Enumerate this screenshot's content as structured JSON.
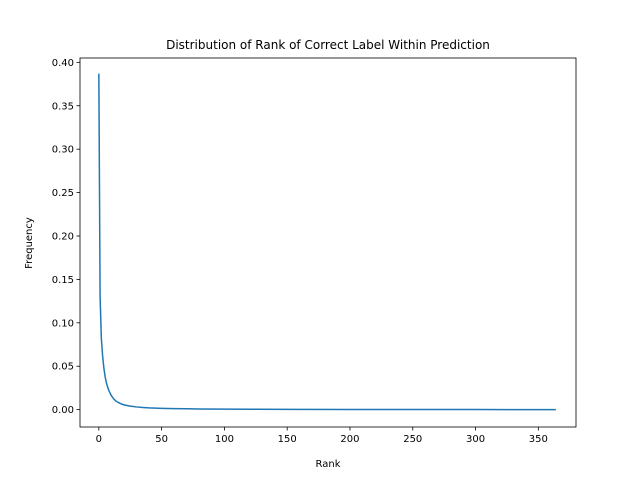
{
  "chart_data": {
    "type": "line",
    "title": "Distribution of Rank of Correct Label Within Prediction",
    "xlabel": "Rank",
    "ylabel": "Frequency",
    "xlim": [
      -15,
      380
    ],
    "ylim": [
      -0.02,
      0.405
    ],
    "xticks": [
      0,
      50,
      100,
      150,
      200,
      250,
      300,
      350
    ],
    "xtick_labels": [
      "0",
      "50",
      "100",
      "150",
      "200",
      "250",
      "300",
      "350"
    ],
    "yticks": [
      0.0,
      0.05,
      0.1,
      0.15,
      0.2,
      0.25,
      0.3,
      0.35,
      0.4
    ],
    "ytick_labels": [
      "0.00",
      "0.05",
      "0.10",
      "0.15",
      "0.20",
      "0.25",
      "0.30",
      "0.35",
      "0.40"
    ],
    "grid": false,
    "line_color": "#1f77b4",
    "series": [
      {
        "x": [
          0,
          1,
          2,
          3,
          4,
          5,
          6,
          7,
          8,
          9,
          10,
          12,
          14,
          16,
          18,
          20,
          25,
          30,
          35,
          40,
          50,
          60,
          70,
          80,
          100,
          120,
          150,
          200,
          250,
          300,
          364
        ],
        "y": [
          0.387,
          0.13,
          0.082,
          0.062,
          0.048,
          0.038,
          0.031,
          0.026,
          0.022,
          0.019,
          0.016,
          0.012,
          0.0095,
          0.0078,
          0.0065,
          0.0055,
          0.004,
          0.0031,
          0.0025,
          0.002,
          0.0015,
          0.0012,
          0.001,
          0.0008,
          0.0006,
          0.0004,
          0.0003,
          0.0002,
          0.0001,
          0.0001,
          0.0
        ]
      }
    ]
  }
}
